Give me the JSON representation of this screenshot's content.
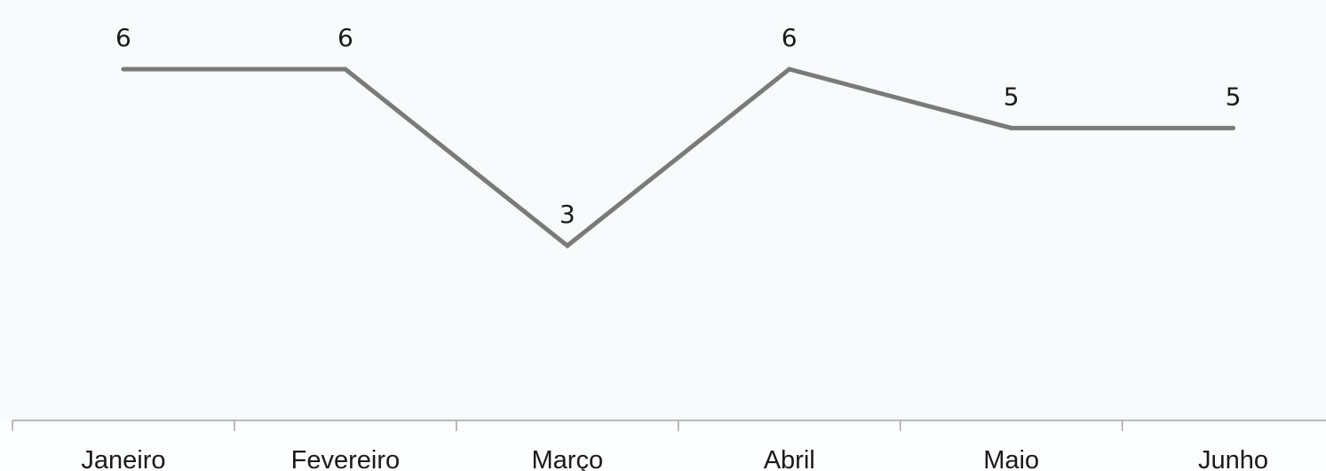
{
  "chart_data": {
    "type": "line",
    "categories": [
      "Janeiro",
      "Fevereiro",
      "Março",
      "Abril",
      "Maio",
      "Junho"
    ],
    "series": [
      {
        "values": [
          6,
          6,
          3,
          6,
          5,
          5
        ],
        "color": "#7a7a7a"
      }
    ],
    "ylim": [
      0,
      7
    ],
    "grid": false,
    "legend": "none",
    "show_data_labels": true
  }
}
